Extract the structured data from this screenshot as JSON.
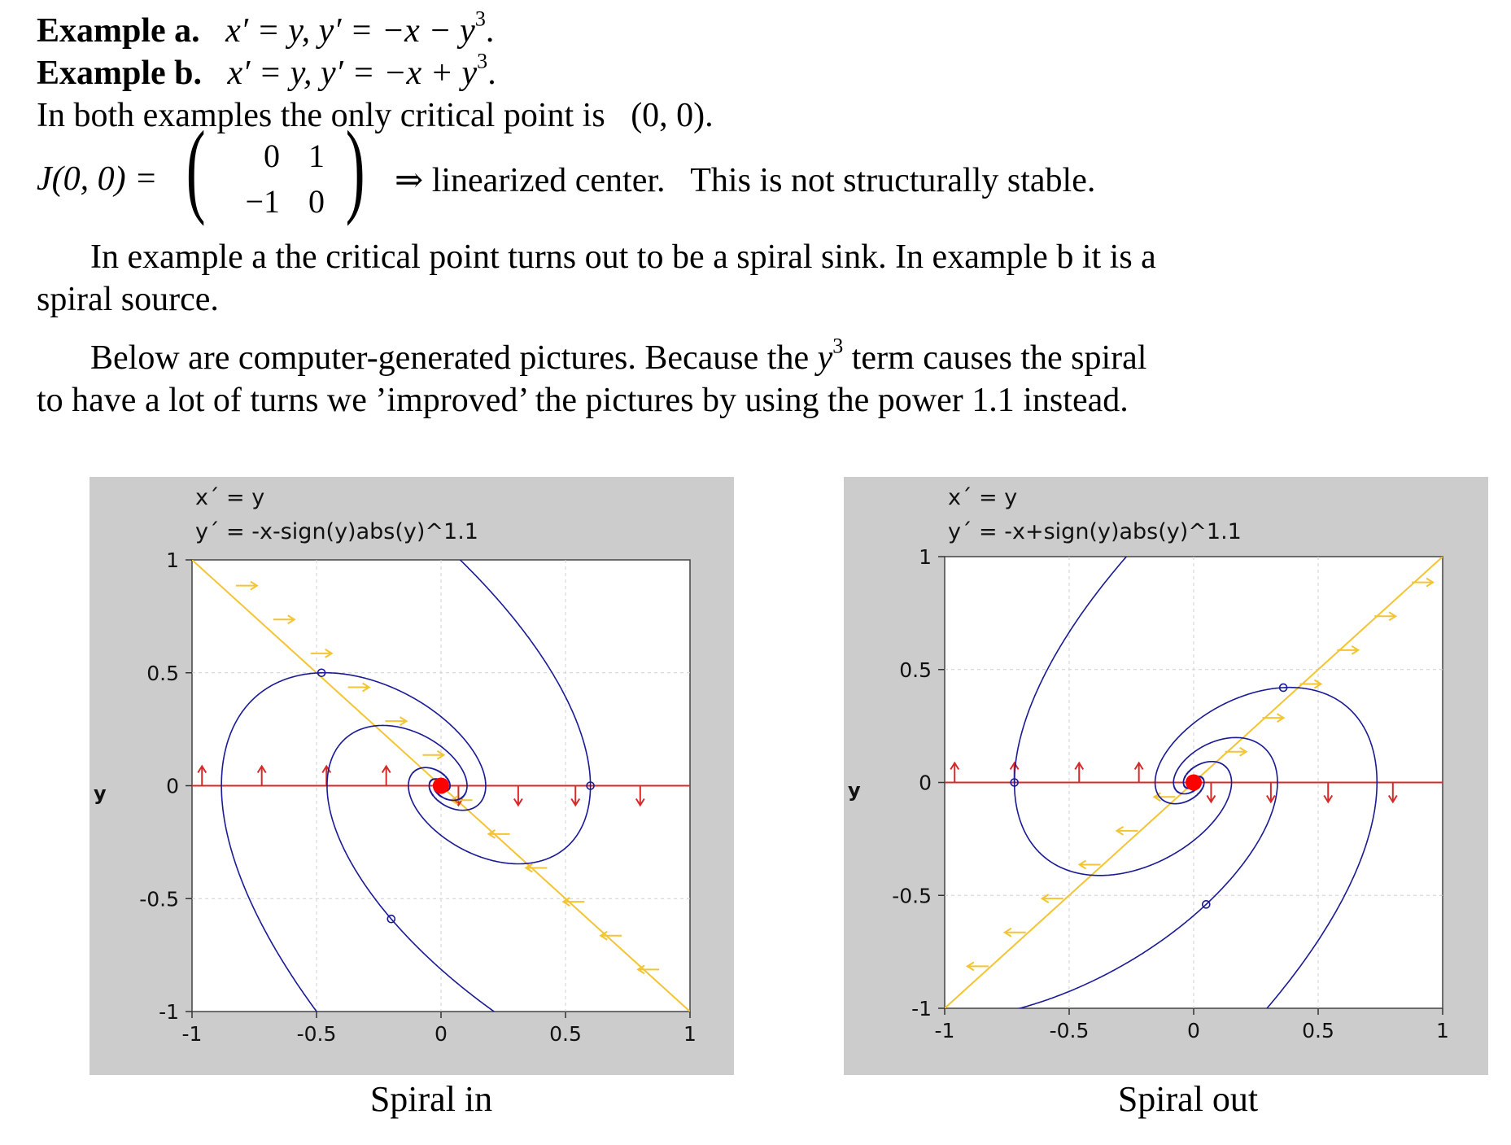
{
  "text": {
    "ex_a_label": "Example a.",
    "ex_a_eq": "x′ = y, y′ = −x − y",
    "ex_a_end": ".",
    "ex_b_label": "Example b.",
    "ex_b_eq": "x′ = y, y′ = −x + y",
    "ex_b_end": ".",
    "exp3": "3",
    "critical": "In both examples the only critical point is",
    "critical_point": "(0, 0).",
    "jac_lhs": "J(0, 0) =",
    "m11": "0",
    "m12": "1",
    "m21": "−1",
    "m22": "0",
    "jac_rhs": "⇒ linearized center.   This is not structurally stable.",
    "para1": "In example a the critical point turns out to be a spiral sink. In example b it is a spiral source.",
    "para2_a": "Below are computer-generated pictures. Because the",
    "para2_y": "y",
    "para2_b": "term causes the spiral to have a lot of turns we ’improved’ the pictures by using the power 1.1 instead."
  },
  "chart_data": [
    {
      "type": "line",
      "title": "x´ = y",
      "subtitle": "y´ = -x-sign(y)abs(y)^1.1",
      "ylabel": "y",
      "xlim": [
        -1,
        1
      ],
      "ylim": [
        -1,
        1
      ],
      "xticks": [
        "-1",
        "-0.5",
        "0",
        "0.5",
        "1"
      ],
      "yticks": [
        "-1",
        "-0.5",
        "0",
        "0.5",
        "1"
      ],
      "grid": true,
      "equilibrium": [
        0,
        0
      ],
      "nullclines": [
        {
          "name": "x-nullcline",
          "color": "#d42a2a",
          "equation": "y = 0"
        },
        {
          "name": "y-nullcline",
          "color": "#f3c433",
          "equation": "y = -x"
        }
      ],
      "trajectory_color": "#1a1a96",
      "starting_points": [
        [
          -0.48,
          0.5
        ],
        [
          -0.2,
          -0.59
        ],
        [
          0.6,
          0.0
        ]
      ],
      "caption": "Spiral in"
    },
    {
      "type": "line",
      "title": "x´ = y",
      "subtitle": "y´ = -x+sign(y)abs(y)^1.1",
      "ylabel": "y",
      "xlim": [
        -1,
        1
      ],
      "ylim": [
        -1,
        1
      ],
      "xticks": [
        "-1",
        "-0.5",
        "0",
        "0.5",
        "1"
      ],
      "yticks": [
        "-1",
        "-0.5",
        "0",
        "0.5",
        "1"
      ],
      "grid": true,
      "equilibrium": [
        0,
        0
      ],
      "nullclines": [
        {
          "name": "x-nullcline",
          "color": "#d42a2a",
          "equation": "y = 0"
        },
        {
          "name": "y-nullcline",
          "color": "#f3c433",
          "equation": "y = x"
        }
      ],
      "trajectory_color": "#1a1a96",
      "starting_points": [
        [
          0.36,
          0.42
        ],
        [
          -0.72,
          0.0
        ],
        [
          0.05,
          -0.54
        ]
      ],
      "caption": "Spiral out"
    }
  ]
}
